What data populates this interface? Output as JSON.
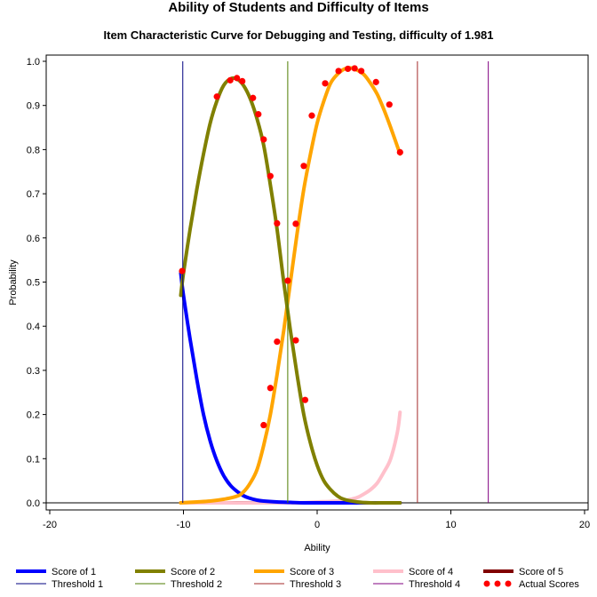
{
  "title": "Ability of Students and Difficulty of Items",
  "subtitle": "Item Characteristic Curve for Debugging and Testing, difficulty of 1.981",
  "chart_data": {
    "type": "line",
    "xlabel": "Ability",
    "ylabel": "Probability",
    "xlim": [
      -20,
      20
    ],
    "ylim": [
      0,
      1
    ],
    "x_ticks": [
      -20,
      -10,
      0,
      10,
      20
    ],
    "y_ticks": [
      "0.0",
      "0.1",
      "0.2",
      "0.3",
      "0.4",
      "0.5",
      "0.6",
      "0.7",
      "0.8",
      "0.9",
      "1.0"
    ],
    "grid": false,
    "legend_position": "bottom",
    "series": [
      {
        "name": "Score of 1",
        "color": "#0000ff",
        "x": [
          -10.2,
          -10.0,
          -9.5,
          -9.0,
          -8.5,
          -8.0,
          -7.5,
          -7.0,
          -6.5,
          -6.0,
          -5.5,
          -5.0,
          -4.5,
          -4.0,
          -3.0,
          -2.0,
          -1.0,
          0.0,
          2.0,
          4.0,
          6.2
        ],
        "y": [
          0.52,
          0.47,
          0.37,
          0.28,
          0.2,
          0.14,
          0.095,
          0.062,
          0.04,
          0.026,
          0.016,
          0.01,
          0.006,
          0.004,
          0.002,
          0.001,
          0.0,
          0.0,
          0.0,
          0.0,
          0.0
        ]
      },
      {
        "name": "Score of 2",
        "color": "#808000",
        "x": [
          -10.2,
          -10.0,
          -9.5,
          -9.0,
          -8.5,
          -8.0,
          -7.5,
          -7.0,
          -6.5,
          -6.0,
          -5.5,
          -5.0,
          -4.5,
          -4.0,
          -3.5,
          -3.0,
          -2.5,
          -2.0,
          -1.5,
          -1.0,
          -0.5,
          0.0,
          0.5,
          1.0,
          1.5,
          2.0,
          3.0,
          4.0,
          5.0,
          6.2
        ],
        "y": [
          0.47,
          0.52,
          0.62,
          0.71,
          0.79,
          0.86,
          0.91,
          0.945,
          0.96,
          0.96,
          0.945,
          0.915,
          0.87,
          0.81,
          0.72,
          0.62,
          0.5,
          0.39,
          0.29,
          0.2,
          0.135,
          0.085,
          0.05,
          0.03,
          0.016,
          0.008,
          0.002,
          0.0,
          0.0,
          0.0
        ]
      },
      {
        "name": "Score of 3",
        "color": "#ffa500",
        "x": [
          -10.2,
          -9.0,
          -8.0,
          -7.0,
          -6.0,
          -5.5,
          -5.0,
          -4.5,
          -4.0,
          -3.5,
          -3.0,
          -2.5,
          -2.0,
          -1.5,
          -1.0,
          -0.5,
          0.0,
          0.5,
          1.0,
          1.5,
          2.0,
          2.5,
          3.0,
          3.5,
          4.0,
          4.5,
          5.0,
          5.5,
          6.2
        ],
        "y": [
          0.0,
          0.002,
          0.004,
          0.008,
          0.015,
          0.025,
          0.045,
          0.075,
          0.13,
          0.2,
          0.29,
          0.39,
          0.5,
          0.61,
          0.71,
          0.79,
          0.86,
          0.91,
          0.95,
          0.97,
          0.982,
          0.985,
          0.98,
          0.97,
          0.95,
          0.925,
          0.89,
          0.85,
          0.79
        ]
      },
      {
        "name": "Score of 4",
        "color": "#ffc0cb",
        "x": [
          -10.2,
          -2.0,
          0.0,
          1.0,
          2.0,
          2.5,
          3.0,
          3.5,
          4.0,
          4.5,
          5.0,
          5.5,
          6.0,
          6.2
        ],
        "y": [
          0.0,
          0.0,
          0.002,
          0.003,
          0.005,
          0.008,
          0.012,
          0.02,
          0.03,
          0.045,
          0.07,
          0.1,
          0.16,
          0.205
        ]
      },
      {
        "name": "Score of 5",
        "color": "#800000",
        "x": [
          -10.2,
          6.2
        ],
        "y": [
          0.0,
          0.0
        ]
      }
    ],
    "thresholds": [
      {
        "name": "Threshold 1",
        "x": -10.05,
        "color": "#000080"
      },
      {
        "name": "Threshold 2",
        "x": -2.2,
        "color": "#4d7c00"
      },
      {
        "name": "Threshold 3",
        "x": 7.5,
        "color": "#a52a2a"
      },
      {
        "name": "Threshold 4",
        "x": 12.8,
        "color": "#800080"
      }
    ],
    "actual_scores": {
      "name": "Actual Scores",
      "color": "#ff0000",
      "points": [
        [
          -10.1,
          0.525
        ],
        [
          -7.5,
          0.92
        ],
        [
          -6.5,
          0.957
        ],
        [
          -6.0,
          0.962
        ],
        [
          -5.6,
          0.955
        ],
        [
          -4.8,
          0.917
        ],
        [
          -4.4,
          0.88
        ],
        [
          -4.0,
          0.823
        ],
        [
          -3.5,
          0.74
        ],
        [
          -3.0,
          0.633
        ],
        [
          -2.2,
          0.503
        ],
        [
          -1.6,
          0.632
        ],
        [
          -1.0,
          0.763
        ],
        [
          -0.4,
          0.877
        ],
        [
          0.6,
          0.95
        ],
        [
          1.6,
          0.978
        ],
        [
          2.3,
          0.983
        ],
        [
          2.8,
          0.984
        ],
        [
          3.3,
          0.978
        ],
        [
          4.4,
          0.953
        ],
        [
          5.4,
          0.902
        ],
        [
          6.2,
          0.794
        ],
        [
          -3.0,
          0.365
        ],
        [
          -1.6,
          0.368
        ],
        [
          -3.5,
          0.26
        ],
        [
          -0.9,
          0.233
        ],
        [
          -4.0,
          0.176
        ]
      ]
    },
    "legend": [
      {
        "label": "Score of 1",
        "kind": "line-thick",
        "color": "#0000ff"
      },
      {
        "label": "Score of 2",
        "kind": "line-thick",
        "color": "#808000"
      },
      {
        "label": "Score of 3",
        "kind": "line-thick",
        "color": "#ffa500"
      },
      {
        "label": "Score of 4",
        "kind": "line-thick",
        "color": "#ffc0cb"
      },
      {
        "label": "Score of 5",
        "kind": "line-thick",
        "color": "#800000"
      },
      {
        "label": "Threshold 1",
        "kind": "line-thin",
        "color": "#000080"
      },
      {
        "label": "Threshold 2",
        "kind": "line-thin",
        "color": "#4d7c00"
      },
      {
        "label": "Threshold 3",
        "kind": "line-thin",
        "color": "#a52a2a"
      },
      {
        "label": "Threshold 4",
        "kind": "line-thin",
        "color": "#800080"
      },
      {
        "label": "Actual Scores",
        "kind": "dots",
        "color": "#ff0000"
      }
    ]
  }
}
